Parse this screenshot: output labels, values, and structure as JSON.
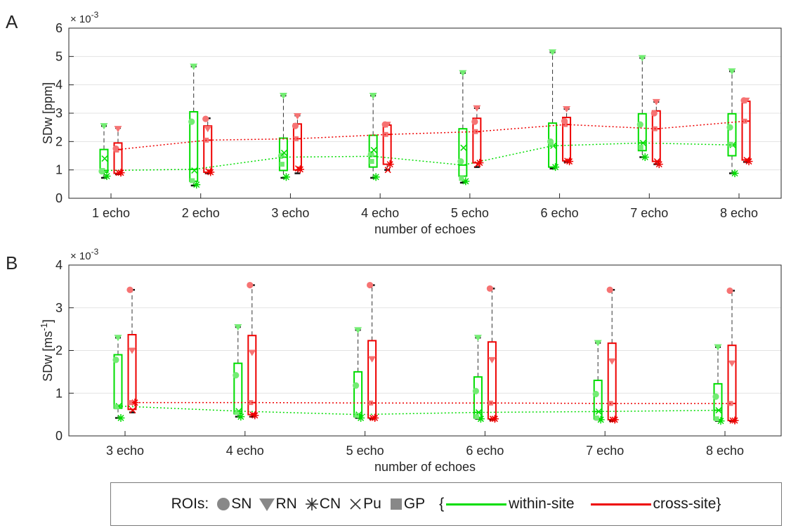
{
  "panels": {
    "a": {
      "letter": "A"
    },
    "b": {
      "letter": "B"
    }
  },
  "legend": {
    "rois_label": "ROIs:",
    "rois": [
      {
        "marker": "circle",
        "label": "SN"
      },
      {
        "marker": "triangle-down",
        "label": "RN"
      },
      {
        "marker": "asterisk",
        "label": "CN"
      },
      {
        "marker": "x",
        "label": "Pu"
      },
      {
        "marker": "square",
        "label": "GP"
      }
    ],
    "brace_open": "{",
    "brace_close": "}",
    "within_label": "within-site",
    "cross_label": "cross-site",
    "within_color": "#00dd00",
    "cross_color": "#ee0000"
  },
  "chart_data": [
    {
      "type": "box",
      "panel": "A",
      "exponent_label": "× 10",
      "exponent_power": "-3",
      "ylabel": "SDw [ppm]",
      "xlabel": "number of echoes",
      "ylim": [
        0,
        6
      ],
      "yticks": [
        "0",
        "1",
        "2",
        "3",
        "4",
        "5",
        "6"
      ],
      "grid": "horizontal",
      "categories": [
        "1 echo",
        "2 echo",
        "3 echo",
        "4 echo",
        "5 echo",
        "6 echo",
        "7 echo",
        "8 echo"
      ],
      "series": [
        {
          "name": "within-site",
          "color": "#00dd00",
          "median_line": [
            0.98,
            1.02,
            1.45,
            1.48,
            1.17,
            1.85,
            1.95,
            1.88
          ],
          "boxes": [
            {
              "q1": 0.92,
              "median": 0.98,
              "q3": 1.72,
              "whisker_low": 0.72,
              "whisker_high": 2.55
            },
            {
              "q1": 0.6,
              "median": 1.02,
              "q3": 3.05,
              "whisker_low": 0.45,
              "whisker_high": 4.65
            },
            {
              "q1": 0.98,
              "median": 1.45,
              "q3": 2.12,
              "whisker_low": 0.72,
              "whisker_high": 3.62
            },
            {
              "q1": 1.1,
              "median": 1.48,
              "q3": 2.22,
              "whisker_low": 0.72,
              "whisker_high": 3.62
            },
            {
              "q1": 0.78,
              "median": 1.17,
              "q3": 2.45,
              "whisker_low": 0.55,
              "whisker_high": 4.42
            },
            {
              "q1": 1.1,
              "median": 1.85,
              "q3": 2.65,
              "whisker_low": 1.05,
              "whisker_high": 5.15
            },
            {
              "q1": 1.68,
              "median": 1.95,
              "q3": 2.98,
              "whisker_low": 1.45,
              "whisker_high": 4.95
            },
            {
              "q1": 1.5,
              "median": 1.88,
              "q3": 2.98,
              "whisker_low": 0.88,
              "whisker_high": 4.48
            }
          ],
          "points": [
            {
              "SN": 0.95,
              "RN": 2.55,
              "CN": 0.78,
              "Pu": 1.4,
              "GP": 0.98
            },
            {
              "SN": 2.7,
              "RN": 4.65,
              "CN": 0.48,
              "Pu": 0.98,
              "GP": 0.62
            },
            {
              "SN": 1.5,
              "RN": 3.62,
              "CN": 0.75,
              "Pu": 1.6,
              "GP": 1.2
            },
            {
              "SN": 1.55,
              "RN": 3.62,
              "CN": 0.75,
              "Pu": 1.7,
              "GP": 1.3
            },
            {
              "SN": 1.3,
              "RN": 4.42,
              "CN": 0.6,
              "Pu": 1.78,
              "GP": 0.7
            },
            {
              "SN": 2.0,
              "RN": 5.15,
              "CN": 1.1,
              "Pu": 1.85,
              "GP": 1.9
            },
            {
              "SN": 2.6,
              "RN": 4.95,
              "CN": 1.45,
              "Pu": 1.95,
              "GP": 1.8
            },
            {
              "SN": 2.5,
              "RN": 4.48,
              "CN": 0.88,
              "Pu": 1.88,
              "GP": 1.9
            }
          ]
        },
        {
          "name": "cross-site",
          "color": "#ee0000",
          "median_line": [
            1.72,
            2.05,
            2.1,
            2.25,
            2.35,
            2.6,
            2.45,
            2.72
          ],
          "boxes": [
            {
              "q1": 0.88,
              "median": 1.72,
              "q3": 1.95,
              "whisker_low": 0.85,
              "whisker_high": 2.48
            },
            {
              "q1": 0.92,
              "median": 2.05,
              "q3": 2.55,
              "whisker_low": 0.88,
              "whisker_high": 2.82
            },
            {
              "q1": 1.0,
              "median": 2.1,
              "q3": 2.62,
              "whisker_low": 0.88,
              "whisker_high": 2.92
            },
            {
              "q1": 1.2,
              "median": 2.25,
              "q3": 2.58,
              "whisker_low": 1.0,
              "whisker_high": 2.62
            },
            {
              "q1": 1.25,
              "median": 2.35,
              "q3": 2.82,
              "whisker_low": 1.1,
              "whisker_high": 3.18
            },
            {
              "q1": 1.32,
              "median": 2.6,
              "q3": 2.85,
              "whisker_low": 1.28,
              "whisker_high": 3.15
            },
            {
              "q1": 1.3,
              "median": 2.45,
              "q3": 3.08,
              "whisker_low": 1.2,
              "whisker_high": 3.4
            },
            {
              "q1": 1.35,
              "median": 2.72,
              "q3": 3.42,
              "whisker_low": 1.28,
              "whisker_high": 3.5
            }
          ],
          "points": [
            {
              "SN": 1.75,
              "RN": 2.45,
              "CN": 0.9,
              "Pu": 0.9,
              "GP": 1.7
            },
            {
              "SN": 2.8,
              "RN": 2.45,
              "CN": 0.92,
              "Pu": 0.95,
              "GP": 2.05
            },
            {
              "SN": 2.55,
              "RN": 2.9,
              "CN": 1.02,
              "Pu": 1.05,
              "GP": 2.1
            },
            {
              "SN": 2.6,
              "RN": 2.6,
              "CN": 1.2,
              "Pu": 1.0,
              "GP": 2.25
            },
            {
              "SN": 2.7,
              "RN": 3.18,
              "CN": 1.25,
              "Pu": 1.2,
              "GP": 2.35
            },
            {
              "SN": 2.72,
              "RN": 3.15,
              "CN": 1.3,
              "Pu": 1.32,
              "GP": 2.6
            },
            {
              "SN": 3.0,
              "RN": 3.4,
              "CN": 1.2,
              "Pu": 1.3,
              "GP": 2.45
            },
            {
              "SN": 3.45,
              "RN": 3.45,
              "CN": 1.3,
              "Pu": 1.35,
              "GP": 2.72
            }
          ]
        }
      ]
    },
    {
      "type": "box",
      "panel": "B",
      "exponent_label": "× 10",
      "exponent_power": "-3",
      "ylabel": "SDw [ms",
      "ylabel_sup": "-1",
      "ylabel_end": "]",
      "xlabel": "number of echoes",
      "ylim": [
        0,
        4
      ],
      "yticks": [
        "0",
        "1",
        "2",
        "3",
        "4"
      ],
      "grid": "horizontal",
      "categories": [
        "3 echo",
        "4 echo",
        "5 echo",
        "6 echo",
        "7 echo",
        "8 echo"
      ],
      "series": [
        {
          "name": "within-site",
          "color": "#00dd00",
          "median_line": [
            0.7,
            0.58,
            0.5,
            0.55,
            0.57,
            0.6
          ],
          "boxes": [
            {
              "q1": 0.65,
              "median": 0.7,
              "q3": 1.9,
              "whisker_low": 0.42,
              "whisker_high": 2.3
            },
            {
              "q1": 0.52,
              "median": 0.58,
              "q3": 1.7,
              "whisker_low": 0.45,
              "whisker_high": 2.55
            },
            {
              "q1": 0.45,
              "median": 0.5,
              "q3": 1.5,
              "whisker_low": 0.42,
              "whisker_high": 2.48
            },
            {
              "q1": 0.42,
              "median": 0.55,
              "q3": 1.38,
              "whisker_low": 0.4,
              "whisker_high": 2.3
            },
            {
              "q1": 0.4,
              "median": 0.57,
              "q3": 1.3,
              "whisker_low": 0.38,
              "whisker_high": 2.18
            },
            {
              "q1": 0.38,
              "median": 0.6,
              "q3": 1.22,
              "whisker_low": 0.35,
              "whisker_high": 2.08
            }
          ],
          "points": [
            {
              "SN": 1.78,
              "RN": 2.3,
              "CN": 0.42,
              "Pu": 0.7,
              "GP": 0.68
            },
            {
              "SN": 1.42,
              "RN": 2.55,
              "CN": 0.45,
              "Pu": 0.58,
              "GP": 0.55
            },
            {
              "SN": 1.18,
              "RN": 2.48,
              "CN": 0.42,
              "Pu": 0.5,
              "GP": 0.48
            },
            {
              "SN": 1.05,
              "RN": 2.3,
              "CN": 0.4,
              "Pu": 0.55,
              "GP": 0.45
            },
            {
              "SN": 0.98,
              "RN": 2.18,
              "CN": 0.38,
              "Pu": 0.57,
              "GP": 0.42
            },
            {
              "SN": 0.92,
              "RN": 2.08,
              "CN": 0.35,
              "Pu": 0.6,
              "GP": 0.4
            }
          ]
        },
        {
          "name": "cross-site",
          "color": "#ee0000",
          "median_line": [
            0.78,
            0.78,
            0.77,
            0.77,
            0.76,
            0.76
          ],
          "boxes": [
            {
              "q1": 0.62,
              "median": 0.78,
              "q3": 2.37,
              "whisker_low": 0.55,
              "whisker_high": 3.42
            },
            {
              "q1": 0.5,
              "median": 0.78,
              "q3": 2.35,
              "whisker_low": 0.45,
              "whisker_high": 3.53
            },
            {
              "q1": 0.42,
              "median": 0.77,
              "q3": 2.23,
              "whisker_low": 0.4,
              "whisker_high": 3.53
            },
            {
              "q1": 0.4,
              "median": 0.77,
              "q3": 2.2,
              "whisker_low": 0.38,
              "whisker_high": 3.45
            },
            {
              "q1": 0.38,
              "median": 0.76,
              "q3": 2.17,
              "whisker_low": 0.35,
              "whisker_high": 3.42
            },
            {
              "q1": 0.36,
              "median": 0.76,
              "q3": 2.12,
              "whisker_low": 0.35,
              "whisker_high": 3.4
            }
          ],
          "points": [
            {
              "SN": 3.42,
              "RN": 2.0,
              "CN": 0.78,
              "Pu": 0.6,
              "GP": 0.78
            },
            {
              "SN": 3.53,
              "RN": 1.95,
              "CN": 0.48,
              "Pu": 0.5,
              "GP": 0.78
            },
            {
              "SN": 3.53,
              "RN": 1.8,
              "CN": 0.42,
              "Pu": 0.42,
              "GP": 0.77
            },
            {
              "SN": 3.45,
              "RN": 1.78,
              "CN": 0.4,
              "Pu": 0.4,
              "GP": 0.77
            },
            {
              "SN": 3.42,
              "RN": 1.75,
              "CN": 0.38,
              "Pu": 0.38,
              "GP": 0.76
            },
            {
              "SN": 3.4,
              "RN": 1.7,
              "CN": 0.36,
              "Pu": 0.36,
              "GP": 0.76
            }
          ]
        }
      ]
    }
  ]
}
